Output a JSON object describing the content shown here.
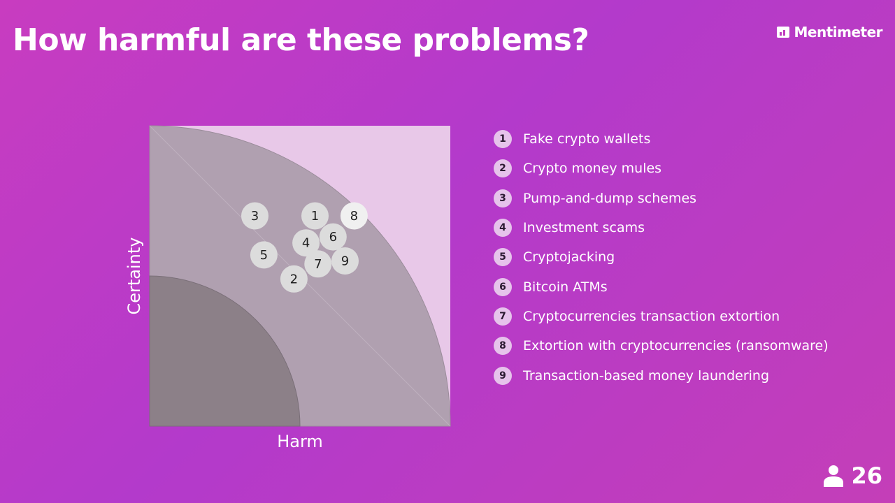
{
  "header": {
    "title": "How harmful are these problems?",
    "brand": "Mentimeter"
  },
  "chart_data": {
    "type": "scatter",
    "xlabel": "Harm",
    "ylabel": "Certainty",
    "xlim": [
      0,
      10
    ],
    "ylim": [
      0,
      10
    ],
    "points": [
      {
        "label": "1",
        "x": 5.5,
        "y": 7.0
      },
      {
        "label": "2",
        "x": 4.8,
        "y": 4.9
      },
      {
        "label": "3",
        "x": 3.5,
        "y": 7.0
      },
      {
        "label": "4",
        "x": 5.2,
        "y": 6.1
      },
      {
        "label": "5",
        "x": 3.8,
        "y": 5.7
      },
      {
        "label": "6",
        "x": 6.1,
        "y": 6.3
      },
      {
        "label": "7",
        "x": 5.6,
        "y": 5.4
      },
      {
        "label": "8",
        "x": 6.8,
        "y": 7.0
      },
      {
        "label": "9",
        "x": 6.5,
        "y": 5.5
      }
    ],
    "legend": [
      {
        "num": "1",
        "label": "Fake crypto wallets"
      },
      {
        "num": "2",
        "label": "Crypto money mules"
      },
      {
        "num": "3",
        "label": "Pump-and-dump schemes"
      },
      {
        "num": "4",
        "label": "Investment scams"
      },
      {
        "num": "5",
        "label": "Cryptojacking"
      },
      {
        "num": "6",
        "label": "Bitcoin ATMs"
      },
      {
        "num": "7",
        "label": "Cryptocurrencies transaction extortion"
      },
      {
        "num": "8",
        "label": "Extortion with cryptocurrencies (ransomware)"
      },
      {
        "num": "9",
        "label": "Transaction-based money laundering"
      }
    ],
    "legend_placement": "right",
    "grid": false
  },
  "footer": {
    "participants": "26",
    "participants_icon": "person-icon"
  },
  "colors": {
    "background": "#c03cc0",
    "chart_outer": "#e8c8e8",
    "chart_middle": "#b0a0b0",
    "chart_inner": "#8c8088",
    "point": "#dcdcdc",
    "point_highlight": "#f0f0f0",
    "legend_badge": "#e6c3eb"
  }
}
